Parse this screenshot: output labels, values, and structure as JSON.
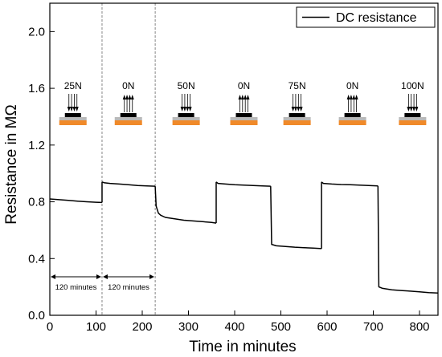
{
  "chart_data": {
    "type": "line",
    "xlabel": "Time in minutes",
    "ylabel": "Resistance in MΩ",
    "xlim": [
      0,
      840
    ],
    "ylim": [
      0,
      2.2
    ],
    "x_ticks": [
      0,
      100,
      200,
      300,
      400,
      500,
      600,
      700,
      800
    ],
    "x_tick_labels": [
      "0",
      "100",
      "200",
      "300",
      "400",
      "500",
      "600",
      "700",
      "800"
    ],
    "y_ticks": [
      0.0,
      0.4,
      0.8,
      1.2,
      1.6,
      2.0
    ],
    "y_tick_labels": [
      "0.0",
      "0.4",
      "0.8",
      "1.2",
      "1.6",
      "2.0"
    ],
    "legend": {
      "entries": [
        "DC resistance"
      ],
      "placement": "top-right"
    },
    "grid": false,
    "vertical_markers": [
      113,
      228
    ],
    "interval_annotations": [
      {
        "from": 0,
        "to": 113,
        "label": "120 minutes"
      },
      {
        "from": 113,
        "to": 228,
        "label": "120 minutes"
      }
    ],
    "force_annotations": [
      {
        "x": 50,
        "label": "25N",
        "direction": "down"
      },
      {
        "x": 170,
        "label": "0N",
        "direction": "up"
      },
      {
        "x": 295,
        "label": "50N",
        "direction": "down"
      },
      {
        "x": 420,
        "label": "0N",
        "direction": "up"
      },
      {
        "x": 535,
        "label": "75N",
        "direction": "down"
      },
      {
        "x": 655,
        "label": "0N",
        "direction": "up"
      },
      {
        "x": 785,
        "label": "100N",
        "direction": "down"
      }
    ],
    "series": [
      {
        "name": "DC resistance",
        "color": "#000000",
        "segments": [
          {
            "x": [
              0,
              20,
              40,
              60,
              80,
              100,
              113
            ],
            "y": [
              0.82,
              0.815,
              0.81,
              0.805,
              0.8,
              0.797,
              0.795
            ]
          },
          {
            "x": [
              113,
              117,
              130,
              150,
              170,
              190,
              210,
              228
            ],
            "y": [
              0.94,
              0.935,
              0.93,
              0.925,
              0.92,
              0.915,
              0.912,
              0.91
            ]
          },
          {
            "x": [
              228,
              230,
              235,
              240,
              250,
              270,
              290,
              310,
              330,
              350,
              360
            ],
            "y": [
              0.91,
              0.77,
              0.72,
              0.705,
              0.69,
              0.68,
              0.67,
              0.665,
              0.66,
              0.655,
              0.65
            ]
          },
          {
            "x": [
              360,
              364,
              380,
              400,
              420,
              440,
              460,
              478
            ],
            "y": [
              0.94,
              0.93,
              0.925,
              0.92,
              0.918,
              0.915,
              0.912,
              0.91
            ]
          },
          {
            "x": [
              478,
              480,
              490,
              510,
              530,
              550,
              570,
              588
            ],
            "y": [
              0.91,
              0.5,
              0.49,
              0.485,
              0.48,
              0.477,
              0.474,
              0.47
            ]
          },
          {
            "x": [
              588,
              592,
              610,
              630,
              650,
              670,
              690,
              710
            ],
            "y": [
              0.94,
              0.93,
              0.925,
              0.922,
              0.92,
              0.918,
              0.915,
              0.912
            ]
          },
          {
            "x": [
              710,
              712,
              720,
              740,
              760,
              780,
              800,
              820,
              840
            ],
            "y": [
              0.912,
              0.2,
              0.19,
              0.18,
              0.175,
              0.17,
              0.165,
              0.16,
              0.157
            ]
          }
        ]
      }
    ]
  }
}
